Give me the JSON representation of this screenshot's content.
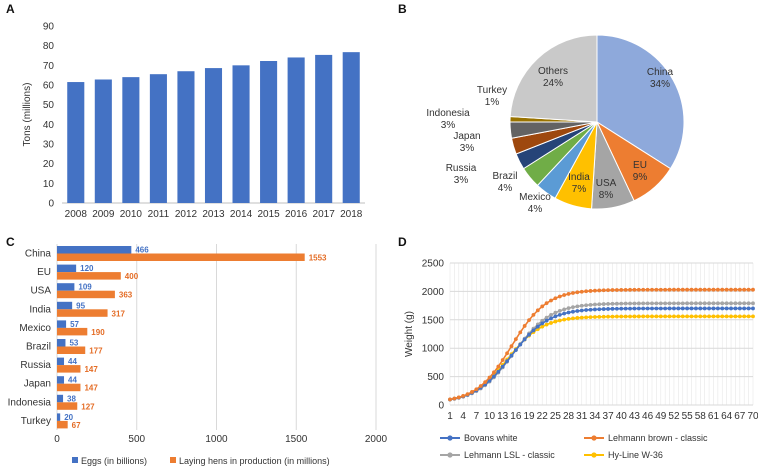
{
  "panels": {
    "a": "A",
    "b": "B",
    "c": "C",
    "d": "D"
  },
  "colors": {
    "bar_blue": "#4472C4",
    "bar_orange": "#ED7D31",
    "grey": "#A5A5A5",
    "yellow": "#FFC000",
    "grid": "#D9D9D9"
  },
  "chart_data": [
    {
      "id": "A",
      "type": "bar",
      "categories": [
        "2008",
        "2009",
        "2010",
        "2011",
        "2012",
        "2013",
        "2014",
        "2015",
        "2016",
        "2017",
        "2018"
      ],
      "values": [
        61.5,
        62.8,
        64.0,
        65.5,
        67.0,
        68.6,
        70.0,
        72.2,
        74.0,
        75.3,
        76.7
      ],
      "ylabel": "Tons (millions)",
      "ylim": [
        0,
        90
      ],
      "yticks": [
        0,
        10,
        20,
        30,
        40,
        50,
        60,
        70,
        80,
        90
      ],
      "grid": false
    },
    {
      "id": "B",
      "type": "pie",
      "slices": [
        {
          "name": "China",
          "value": 34,
          "label": "China\n34%",
          "color": "#8EA9DB"
        },
        {
          "name": "EU",
          "value": 9,
          "label": "EU\n9%",
          "color": "#ED7D31"
        },
        {
          "name": "USA",
          "value": 8,
          "label": "USA\n8%",
          "color": "#A5A5A5"
        },
        {
          "name": "India",
          "value": 7,
          "label": "India\n7%",
          "color": "#FFC000"
        },
        {
          "name": "Mexico",
          "value": 4,
          "label": "Mexico\n4%",
          "color": "#5B9BD5"
        },
        {
          "name": "Brazil",
          "value": 4,
          "label": "Brazil\n4%",
          "color": "#70AD47"
        },
        {
          "name": "Russia",
          "value": 3,
          "label": "Russia\n3%",
          "color": "#264478"
        },
        {
          "name": "Japan",
          "value": 3,
          "label": "Japan\n3%",
          "color": "#9E480E"
        },
        {
          "name": "Indonesia",
          "value": 3,
          "label": "Indonesia\n3%",
          "color": "#636363"
        },
        {
          "name": "Turkey",
          "value": 1,
          "label": "Turkey\n1%",
          "color": "#997300"
        },
        {
          "name": "Others",
          "value": 24,
          "label": "Others\n24%",
          "color": "#C9C9C9"
        }
      ]
    },
    {
      "id": "C",
      "type": "bar",
      "orientation": "horizontal",
      "categories": [
        "China",
        "EU",
        "USA",
        "India",
        "Mexico",
        "Brazil",
        "Russia",
        "Japan",
        "Indonesia",
        "Turkey"
      ],
      "series": [
        {
          "name": "Eggs (in billions)",
          "values": [
            466,
            120,
            109,
            95,
            57,
            53,
            44,
            44,
            38,
            20
          ]
        },
        {
          "name": "Laying hens in production (in millions)",
          "values": [
            1553,
            400,
            363,
            317,
            190,
            177,
            147,
            147,
            127,
            67
          ]
        }
      ],
      "xlim": [
        0,
        2000
      ],
      "xticks": [
        0,
        500,
        1000,
        1500,
        2000
      ],
      "grid": true
    },
    {
      "id": "D",
      "type": "line",
      "ylabel": "Weight (g)",
      "ylim": [
        0,
        2500
      ],
      "yticks": [
        0,
        500,
        1000,
        1500,
        2000,
        2500
      ],
      "xlim": [
        1,
        70
      ],
      "xticks": [
        1,
        4,
        7,
        10,
        13,
        16,
        19,
        22,
        25,
        28,
        31,
        34,
        37,
        40,
        43,
        46,
        49,
        52,
        55,
        58,
        61,
        64,
        67,
        70
      ],
      "grid": true,
      "series": [
        {
          "name": "Bovans white",
          "color": "#4472C4",
          "plateau": 1700,
          "midpoint": 15,
          "scale": 4.2
        },
        {
          "name": "Lehmann brown - classic",
          "color": "#ED7D31",
          "plateau": 2030,
          "midpoint": 15,
          "scale": 4.0
        },
        {
          "name": "Lehmann LSL - classic",
          "color": "#A5A5A5",
          "plateau": 1790,
          "midpoint": 15.5,
          "scale": 4.2
        },
        {
          "name": "Hy-Line W-36",
          "color": "#FFC000",
          "plateau": 1560,
          "midpoint": 14,
          "scale": 4.0
        }
      ]
    }
  ]
}
